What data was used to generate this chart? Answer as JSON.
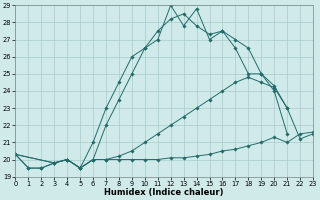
{
  "xlabel": "Humidex (Indice chaleur)",
  "xlim": [
    0,
    23
  ],
  "ylim": [
    19,
    29
  ],
  "xticks": [
    0,
    1,
    2,
    3,
    4,
    5,
    6,
    7,
    8,
    9,
    10,
    11,
    12,
    13,
    14,
    15,
    16,
    17,
    18,
    19,
    20,
    21,
    22,
    23
  ],
  "yticks": [
    19,
    20,
    21,
    22,
    23,
    24,
    25,
    26,
    27,
    28,
    29
  ],
  "bg_color": "#d0eaea",
  "grid_color": "#aacccc",
  "line_color": "#236b6b",
  "series": [
    {
      "x": [
        0,
        1,
        2,
        3,
        4,
        5,
        6,
        7,
        8,
        9,
        10,
        11,
        12,
        13,
        14,
        15,
        16,
        17,
        18,
        19,
        20,
        21,
        22,
        23
      ],
      "y": [
        20.3,
        19.5,
        19.5,
        19.8,
        20.0,
        19.5,
        20.0,
        20.0,
        20.0,
        20.0,
        20.0,
        20.0,
        20.1,
        20.1,
        20.2,
        20.3,
        20.5,
        20.6,
        20.8,
        21.0,
        21.3,
        21.0,
        21.5,
        21.6
      ]
    },
    {
      "x": [
        0,
        1,
        2,
        3,
        4,
        5,
        6,
        7,
        8,
        9,
        10,
        11,
        12,
        13,
        14,
        15,
        16,
        17,
        18,
        19,
        20,
        21,
        22,
        23
      ],
      "y": [
        20.3,
        19.5,
        19.5,
        19.8,
        20.0,
        19.5,
        20.0,
        20.0,
        20.2,
        20.5,
        21.0,
        21.5,
        22.0,
        22.5,
        23.0,
        23.5,
        24.0,
        24.5,
        24.8,
        24.5,
        24.2,
        23.0,
        21.2,
        21.5
      ]
    },
    {
      "x": [
        0,
        3,
        4,
        5,
        6,
        7,
        8,
        9,
        10,
        11,
        12,
        13,
        14,
        15,
        16,
        17,
        18,
        19,
        20,
        21
      ],
      "y": [
        20.3,
        19.8,
        20.0,
        19.5,
        21.0,
        23.0,
        24.5,
        26.0,
        26.5,
        27.0,
        29.0,
        27.8,
        28.8,
        27.0,
        27.5,
        26.5,
        25.0,
        25.0,
        24.3,
        23.0
      ]
    },
    {
      "x": [
        0,
        3,
        4,
        5,
        6,
        7,
        8,
        9,
        10,
        11,
        12,
        13,
        14,
        15,
        16,
        17,
        18,
        19,
        20,
        21
      ],
      "y": [
        20.3,
        19.8,
        20.0,
        19.5,
        20.0,
        22.0,
        23.5,
        25.0,
        26.5,
        27.5,
        28.2,
        28.5,
        27.8,
        27.3,
        27.5,
        27.0,
        26.5,
        25.0,
        24.0,
        21.5
      ]
    }
  ]
}
